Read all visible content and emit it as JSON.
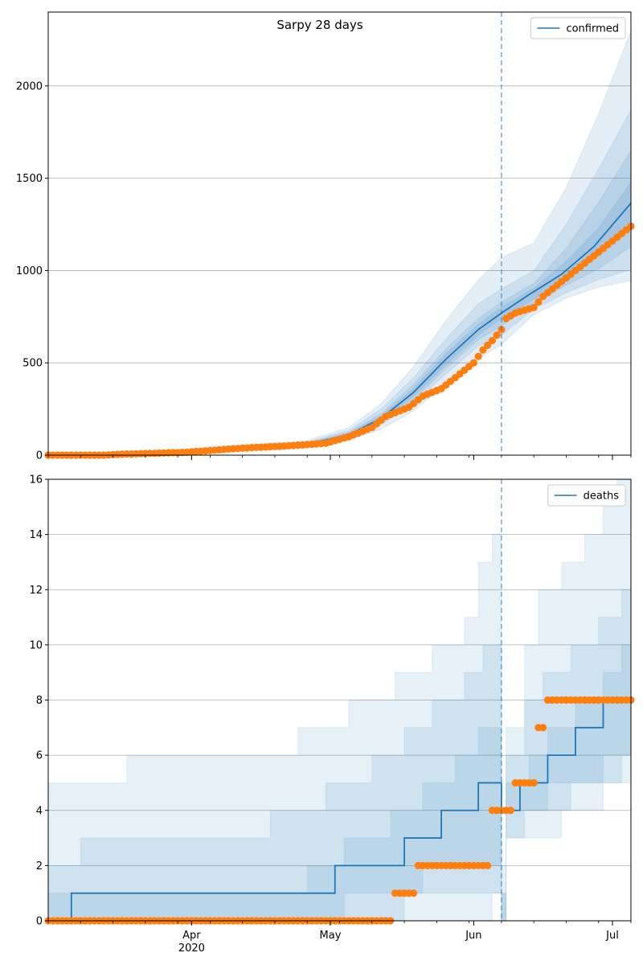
{
  "figure": {
    "title": "Sarpy 28 days"
  },
  "chart_data": [
    {
      "type": "line",
      "id": "confirmed",
      "title": "Sarpy 28 days",
      "legend": {
        "label": "confirmed",
        "placement": "top-right"
      },
      "x_axis": {
        "type": "date",
        "range": [
          "2020-03-01",
          "2020-07-05"
        ],
        "major_ticks": [
          {
            "date": "2020-04-01",
            "label": "Apr",
            "sublabel": "2020"
          },
          {
            "date": "2020-05-01",
            "label": "May"
          },
          {
            "date": "2020-06-01",
            "label": "Jun"
          },
          {
            "date": "2020-07-01",
            "label": "Jul"
          }
        ]
      },
      "y_axis": {
        "range": [
          0,
          2400
        ],
        "ticks": [
          0,
          500,
          1000,
          1500,
          2000
        ]
      },
      "grid": "horizontal",
      "vline_date": "2020-06-07",
      "colors": {
        "forecast": "#1f77b4",
        "observed": "#ff7f0e",
        "band": "#1f77b4"
      },
      "forecast_anchors": [
        [
          "2020-03-01",
          0
        ],
        [
          "2020-03-15",
          2
        ],
        [
          "2020-03-29",
          15
        ],
        [
          "2020-04-12",
          40
        ],
        [
          "2020-04-26",
          60
        ],
        [
          "2020-05-05",
          110
        ],
        [
          "2020-05-12",
          200
        ],
        [
          "2020-05-19",
          340
        ],
        [
          "2020-05-26",
          520
        ],
        [
          "2020-06-02",
          680
        ],
        [
          "2020-06-07",
          770
        ],
        [
          "2020-06-13",
          870
        ],
        [
          "2020-06-20",
          980
        ],
        [
          "2020-06-27",
          1130
        ],
        [
          "2020-07-05",
          1365
        ]
      ],
      "bands": [
        {
          "anchors": [
            [
              "2020-03-01",
              0,
              0
            ],
            [
              "2020-03-29",
              11,
              19
            ],
            [
              "2020-04-12",
              30,
              52
            ],
            [
              "2020-04-26",
              45,
              80
            ],
            [
              "2020-05-05",
              80,
              150
            ],
            [
              "2020-05-12",
              140,
              280
            ],
            [
              "2020-05-19",
              240,
              480
            ],
            [
              "2020-05-26",
              380,
              730
            ],
            [
              "2020-06-02",
              520,
              950
            ],
            [
              "2020-06-07",
              600,
              1070
            ],
            [
              "2020-06-14",
              760,
              1150
            ],
            [
              "2020-06-21",
              850,
              1450
            ],
            [
              "2020-06-28",
              910,
              1850
            ],
            [
              "2020-07-05",
              945,
              2300
            ]
          ]
        },
        {
          "anchors": [
            [
              "2020-03-01",
              0,
              0
            ],
            [
              "2020-03-29",
              12,
              18
            ],
            [
              "2020-04-12",
              33,
              48
            ],
            [
              "2020-04-26",
              50,
              72
            ],
            [
              "2020-05-05",
              90,
              135
            ],
            [
              "2020-05-12",
              165,
              250
            ],
            [
              "2020-05-19",
              280,
              420
            ],
            [
              "2020-05-26",
              440,
              630
            ],
            [
              "2020-06-02",
              590,
              820
            ],
            [
              "2020-06-07",
              650,
              900
            ],
            [
              "2020-06-14",
              790,
              1000
            ],
            [
              "2020-06-21",
              880,
              1250
            ],
            [
              "2020-06-28",
              950,
              1550
            ],
            [
              "2020-07-05",
              1005,
              1870
            ]
          ]
        },
        {
          "anchors": [
            [
              "2020-03-01",
              0,
              0
            ],
            [
              "2020-03-29",
              13,
              17
            ],
            [
              "2020-04-12",
              35,
              45
            ],
            [
              "2020-04-26",
              54,
              67
            ],
            [
              "2020-05-05",
              97,
              125
            ],
            [
              "2020-05-12",
              178,
              225
            ],
            [
              "2020-05-19",
              300,
              385
            ],
            [
              "2020-05-26",
              470,
              575
            ],
            [
              "2020-06-02",
              625,
              740
            ],
            [
              "2020-06-07",
              700,
              830
            ],
            [
              "2020-06-14",
              820,
              930
            ],
            [
              "2020-06-21",
              920,
              1120
            ],
            [
              "2020-06-28",
              1010,
              1370
            ],
            [
              "2020-07-05",
              1130,
              1650
            ]
          ]
        },
        {
          "anchors": [
            [
              "2020-03-01",
              0,
              0
            ],
            [
              "2020-03-29",
              14,
              16
            ],
            [
              "2020-04-12",
              37,
              43
            ],
            [
              "2020-04-26",
              56,
              64
            ],
            [
              "2020-05-05",
              102,
              118
            ],
            [
              "2020-05-12",
              188,
              212
            ],
            [
              "2020-05-19",
              318,
              362
            ],
            [
              "2020-05-26",
              490,
              550
            ],
            [
              "2020-06-02",
              650,
              710
            ],
            [
              "2020-06-07",
              740,
              800
            ],
            [
              "2020-06-14",
              845,
              905
            ],
            [
              "2020-06-21",
              960,
              1050
            ],
            [
              "2020-06-28",
              1080,
              1230
            ],
            [
              "2020-07-05",
              1250,
              1480
            ]
          ]
        }
      ],
      "observed_anchors": [
        [
          "2020-03-01",
          0
        ],
        [
          "2020-03-13",
          0
        ],
        [
          "2020-03-16",
          4
        ],
        [
          "2020-03-21",
          8
        ],
        [
          "2020-03-26",
          12
        ],
        [
          "2020-03-31",
          16
        ],
        [
          "2020-04-05",
          25
        ],
        [
          "2020-04-10",
          35
        ],
        [
          "2020-04-15",
          42
        ],
        [
          "2020-04-20",
          48
        ],
        [
          "2020-04-25",
          55
        ],
        [
          "2020-04-30",
          65
        ],
        [
          "2020-05-05",
          100
        ],
        [
          "2020-05-10",
          150
        ],
        [
          "2020-05-13",
          210
        ],
        [
          "2020-05-18",
          260
        ],
        [
          "2020-05-21",
          320
        ],
        [
          "2020-05-25",
          360
        ],
        [
          "2020-05-28",
          420
        ],
        [
          "2020-06-01",
          500
        ],
        [
          "2020-06-03",
          570
        ],
        [
          "2020-06-05",
          620
        ],
        [
          "2020-06-07",
          680
        ],
        [
          "2020-06-08",
          740
        ],
        [
          "2020-06-10",
          770
        ],
        [
          "2020-06-14",
          800
        ],
        [
          "2020-06-16",
          860
        ],
        [
          "2020-06-19",
          920
        ],
        [
          "2020-06-22",
          980
        ],
        [
          "2020-06-25",
          1040
        ],
        [
          "2020-06-28",
          1100
        ],
        [
          "2020-07-01",
          1160
        ],
        [
          "2020-07-05",
          1240
        ]
      ]
    },
    {
      "type": "line",
      "id": "deaths",
      "legend": {
        "label": "deaths",
        "placement": "top-right"
      },
      "x_axis": {
        "type": "date",
        "range": [
          "2020-03-01",
          "2020-07-05"
        ],
        "major_ticks": [
          {
            "date": "2020-04-01",
            "label": "Apr",
            "sublabel": "2020"
          },
          {
            "date": "2020-05-01",
            "label": "May"
          },
          {
            "date": "2020-06-01",
            "label": "Jun"
          },
          {
            "date": "2020-07-01",
            "label": "Jul"
          }
        ]
      },
      "y_axis": {
        "range": [
          0,
          16
        ],
        "ticks": [
          0,
          2,
          4,
          6,
          8,
          10,
          12,
          14,
          16
        ]
      },
      "grid": "horizontal",
      "vline_date": "2020-06-07",
      "colors": {
        "forecast": "#1f77b4",
        "observed": "#ff7f0e",
        "band": "#1f77b4"
      },
      "forecast_steps": [
        [
          "2020-03-01",
          0
        ],
        [
          "2020-03-06",
          1
        ],
        [
          "2020-05-02",
          2
        ],
        [
          "2020-05-17",
          3
        ],
        [
          "2020-05-25",
          4
        ],
        [
          "2020-06-02",
          5
        ],
        [
          "2020-06-07",
          4
        ],
        [
          "2020-06-11",
          5
        ],
        [
          "2020-06-17",
          6
        ],
        [
          "2020-06-23",
          7
        ],
        [
          "2020-06-29",
          8
        ],
        [
          "2020-07-05",
          8
        ]
      ],
      "bands": [
        {
          "steps": [
            [
              "2020-03-01",
              0,
              5
            ],
            [
              "2020-03-18",
              0,
              6
            ],
            [
              "2020-04-24",
              0,
              7
            ],
            [
              "2020-05-05",
              0,
              8
            ],
            [
              "2020-05-15",
              0,
              9
            ],
            [
              "2020-05-23",
              0,
              10
            ],
            [
              "2020-05-30",
              0,
              11
            ],
            [
              "2020-06-02",
              0,
              13
            ],
            [
              "2020-06-05",
              1,
              14
            ],
            [
              "2020-06-07",
              1,
              0
            ],
            [
              "2020-06-08",
              3,
              7
            ],
            [
              "2020-06-12",
              3,
              10
            ],
            [
              "2020-06-15",
              3,
              12
            ],
            [
              "2020-06-20",
              4,
              13
            ],
            [
              "2020-06-25",
              4,
              14
            ],
            [
              "2020-06-29",
              5,
              15
            ],
            [
              "2020-07-02",
              5,
              16
            ]
          ]
        },
        {
          "steps": [
            [
              "2020-03-01",
              0,
              2
            ],
            [
              "2020-03-08",
              0,
              3
            ],
            [
              "2020-04-18",
              0,
              4
            ],
            [
              "2020-04-30",
              0,
              5
            ],
            [
              "2020-05-10",
              0,
              6
            ],
            [
              "2020-05-17",
              1,
              7
            ],
            [
              "2020-05-23",
              1,
              8
            ],
            [
              "2020-05-30",
              1,
              9
            ],
            [
              "2020-06-03",
              1,
              10
            ],
            [
              "2020-06-07",
              1,
              0
            ],
            [
              "2020-06-08",
              3,
              6
            ],
            [
              "2020-06-12",
              4,
              8
            ],
            [
              "2020-06-16",
              4,
              9
            ],
            [
              "2020-06-22",
              5,
              10
            ],
            [
              "2020-06-28",
              5,
              11
            ],
            [
              "2020-07-03",
              6,
              12
            ]
          ]
        },
        {
          "steps": [
            [
              "2020-03-01",
              0,
              1
            ],
            [
              "2020-03-06",
              0,
              1
            ],
            [
              "2020-04-26",
              0,
              2
            ],
            [
              "2020-05-04",
              1,
              3
            ],
            [
              "2020-05-14",
              1,
              4
            ],
            [
              "2020-05-21",
              2,
              5
            ],
            [
              "2020-05-28",
              2,
              6
            ],
            [
              "2020-06-02",
              2,
              7
            ],
            [
              "2020-06-07",
              2,
              0
            ],
            [
              "2020-06-08",
              4,
              5
            ],
            [
              "2020-06-13",
              4,
              6
            ],
            [
              "2020-06-17",
              5,
              7
            ],
            [
              "2020-06-23",
              5,
              8
            ],
            [
              "2020-06-29",
              6,
              9
            ],
            [
              "2020-07-03",
              6,
              10
            ]
          ]
        }
      ],
      "observed_anchors": [
        [
          "2020-03-01",
          0
        ],
        [
          "2020-05-14",
          0
        ],
        [
          "2020-05-15",
          1
        ],
        [
          "2020-05-19",
          1
        ],
        [
          "2020-05-20",
          2
        ],
        [
          "2020-06-04",
          2
        ],
        [
          "2020-06-05",
          4
        ],
        [
          "2020-06-09",
          4
        ],
        [
          "2020-06-10",
          5
        ],
        [
          "2020-06-14",
          5
        ],
        [
          "2020-06-15",
          7
        ],
        [
          "2020-06-16",
          7
        ],
        [
          "2020-06-17",
          8
        ],
        [
          "2020-07-05",
          8
        ]
      ]
    }
  ]
}
